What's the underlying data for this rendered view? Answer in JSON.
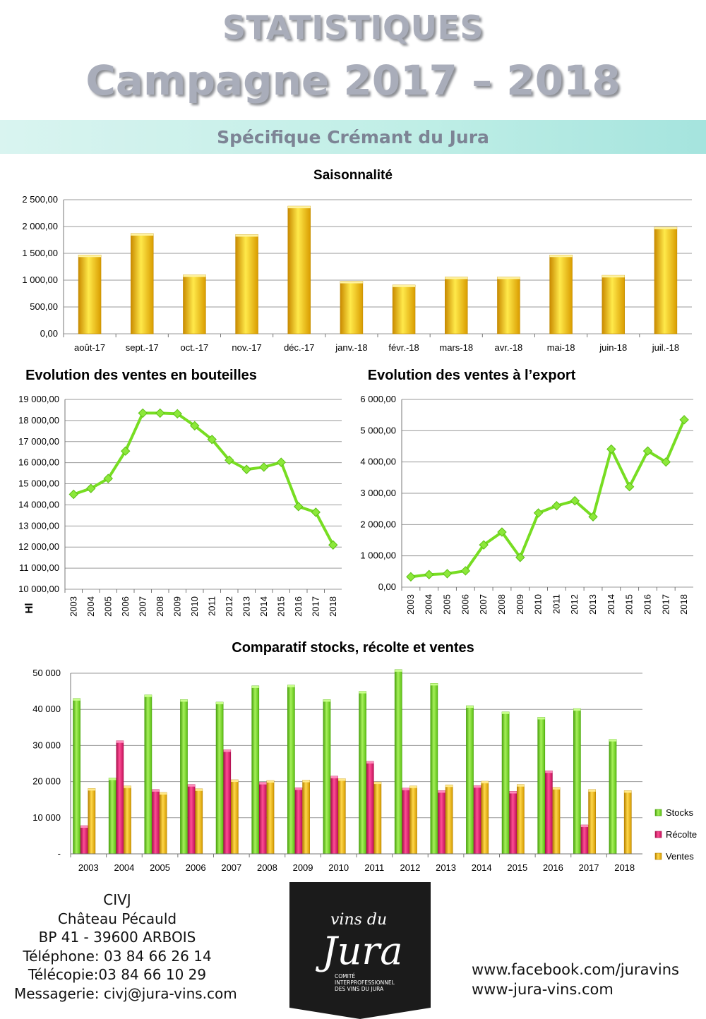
{
  "header": {
    "title_line1": "STATISTIQUES",
    "title_line2": "Campagne 2017 – 2018",
    "subtitle": "Spécifique Crémant du Jura"
  },
  "colors": {
    "yellow": "#f2c200",
    "green": "#77dd22",
    "pink": "#e6196e",
    "gold": "#f2b800",
    "title": "#a9adba",
    "band": "#bfeee6"
  },
  "chart_data": [
    {
      "id": "saisonnalite",
      "type": "bar",
      "title": "Saisonnalité",
      "categories": [
        "août-17",
        "sept.-17",
        "oct.-17",
        "nov.-17",
        "déc.-17",
        "janv.-18",
        "févr.-18",
        "mars-18",
        "avr.-18",
        "mai-18",
        "juin-18",
        "juil.-18"
      ],
      "values": [
        1470,
        1870,
        1100,
        1850,
        2380,
        980,
        910,
        1060,
        1060,
        1470,
        1090,
        1990
      ],
      "ylim": [
        0,
        2500
      ],
      "yticks": [
        "0,00",
        "500,00",
        "1 000,00",
        "1 500,00",
        "2 000,00",
        "2 500,00"
      ],
      "grid": true
    },
    {
      "id": "bouteilles",
      "type": "line",
      "title": "Evolution des ventes en bouteilles",
      "ylabel": "Hl",
      "x": [
        "2003",
        "2004",
        "2005",
        "2006",
        "2007",
        "2008",
        "2009",
        "2010",
        "2011",
        "2012",
        "2013",
        "2014",
        "2015",
        "2016",
        "2017",
        "2018"
      ],
      "values": [
        14500,
        14780,
        15250,
        16550,
        18350,
        18350,
        18320,
        17750,
        17100,
        16120,
        15680,
        15790,
        16020,
        13920,
        13650,
        12100
      ],
      "ylim": [
        10000,
        19000
      ],
      "yticks": [
        "10 000,00",
        "11 000,00",
        "12 000,00",
        "13 000,00",
        "14 000,00",
        "15 000,00",
        "16 000,00",
        "17 000,00",
        "18 000,00",
        "19 000,00"
      ],
      "grid": true
    },
    {
      "id": "export",
      "type": "line",
      "title": "Evolution des ventes à l’export",
      "x": [
        "2003",
        "2004",
        "2005",
        "2006",
        "2007",
        "2008",
        "2009",
        "2010",
        "2011",
        "2012",
        "2013",
        "2014",
        "2015",
        "2016",
        "2017",
        "2018"
      ],
      "values": [
        330,
        400,
        430,
        520,
        1350,
        1760,
        950,
        2370,
        2600,
        2760,
        2250,
        4410,
        3210,
        4350,
        4000,
        5350
      ],
      "ylim": [
        0,
        6000
      ],
      "yticks": [
        "0,00",
        "1 000,00",
        "2 000,00",
        "3 000,00",
        "4 000,00",
        "5 000,00",
        "6 000,00"
      ],
      "grid": true
    },
    {
      "id": "comparatif",
      "type": "bar",
      "title": "Comparatif stocks, récolte et ventes",
      "categories": [
        "2003",
        "2004",
        "2005",
        "2006",
        "2007",
        "2008",
        "2009",
        "2010",
        "2011",
        "2012",
        "2013",
        "2014",
        "2015",
        "2016",
        "2017",
        "2018"
      ],
      "series": [
        {
          "name": "Stocks",
          "values": [
            43000,
            21000,
            44000,
            42700,
            42000,
            46500,
            46700,
            42700,
            45000,
            51000,
            47200,
            41000,
            39300,
            37800,
            40200,
            31700
          ]
        },
        {
          "name": "Récolte",
          "values": [
            7800,
            31300,
            17800,
            19200,
            28800,
            19800,
            18300,
            21500,
            25600,
            18200,
            17500,
            18900,
            17300,
            23000,
            8000,
            null
          ]
        },
        {
          "name": "Ventes",
          "values": [
            18100,
            18800,
            17000,
            18000,
            20500,
            20300,
            20400,
            20800,
            19900,
            18800,
            19100,
            20100,
            19200,
            18400,
            17800,
            17500
          ]
        }
      ],
      "ylim": [
        0,
        50000
      ],
      "yticks": [
        "-",
        "10 000",
        "20 000",
        "30 000",
        "40 000",
        "50 000"
      ],
      "legend_position": "right",
      "grid": true
    }
  ],
  "footer": {
    "address_lines": [
      "CIVJ",
      "Château Pécauld",
      "BP 41 - 39600 ARBOIS",
      "Téléphone: 03 84 66 26 14",
      "Télécopie:03 84 66 10 29",
      "Messagerie: civj@jura-vins.com"
    ],
    "facebook": "www.facebook.com/juravins",
    "website": "www-jura-vins.com",
    "logo": {
      "line1": "vins du",
      "line2": "Jura",
      "caption": [
        "COMITÉ",
        "INTERPROFESSIONNEL",
        "DES VINS DU JURA"
      ]
    }
  }
}
